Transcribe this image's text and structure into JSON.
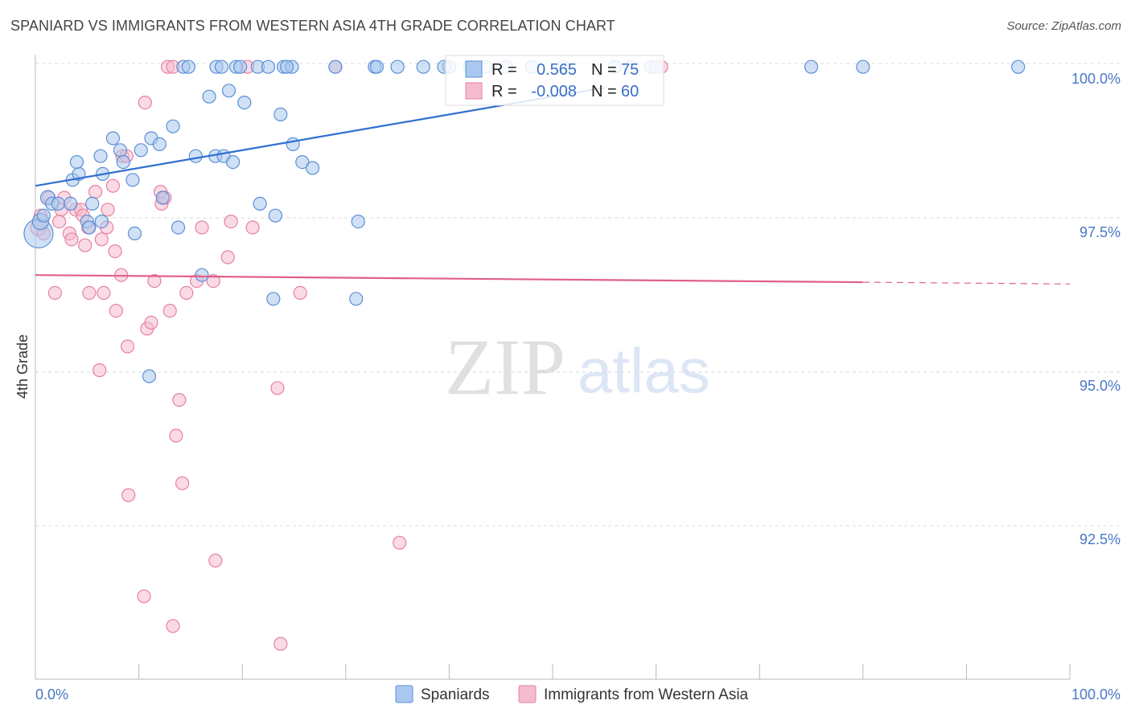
{
  "header": {
    "title": "SPANIARD VS IMMIGRANTS FROM WESTERN ASIA 4TH GRADE CORRELATION CHART",
    "source": "Source: ZipAtlas.com"
  },
  "watermark": {
    "zip": "ZIP",
    "atlas": "atlas"
  },
  "colors": {
    "blue_fill": "#aac8ef",
    "blue_stroke": "#5b8fd6",
    "blue_line": "#2f6fd0",
    "pink_fill": "#f5bccf",
    "pink_stroke": "#e7809f",
    "pink_line": "#e0608a",
    "axis_text": "#4a78c4",
    "grid": "#d8d8d8"
  },
  "legend": {
    "r_label": "R =",
    "n_label": "N =",
    "series": [
      {
        "r": "0.565",
        "n": "75"
      },
      {
        "r": "-0.008",
        "n": "60"
      }
    ]
  },
  "chart_data": {
    "type": "scatter",
    "title": "SPANIARD VS IMMIGRANTS FROM WESTERN ASIA 4TH GRADE CORRELATION CHART",
    "xlabel": "",
    "ylabel": "4th Grade",
    "xlim": [
      0,
      100
    ],
    "ylim": [
      90.2,
      100.4
    ],
    "x_tick_labels": [
      "0.0%",
      "100.0%"
    ],
    "y_ticks": [
      100.0,
      97.5,
      95.0,
      92.5
    ],
    "y_tick_labels": [
      "100.0%",
      "97.5%",
      "95.0%",
      "92.5%"
    ],
    "series": [
      {
        "name": "Spaniards",
        "color": "blue",
        "r": 0.565,
        "n": 75,
        "trend": {
          "x0": 0,
          "y0": 98.2,
          "x1": 55,
          "y1": 99.85,
          "solid_until": 55
        },
        "points": [
          [
            0.3,
            97.4,
            18
          ],
          [
            0.5,
            97.6,
            10
          ],
          [
            0.8,
            97.7,
            8
          ],
          [
            1.2,
            98.0,
            9
          ],
          [
            1.6,
            97.9,
            8
          ],
          [
            2.2,
            97.9,
            8
          ],
          [
            3.4,
            97.9,
            8
          ],
          [
            3.6,
            98.3,
            8
          ],
          [
            4.2,
            98.4,
            8
          ],
          [
            4.0,
            98.6,
            8
          ],
          [
            5.0,
            97.6,
            8
          ],
          [
            5.5,
            97.9,
            8
          ],
          [
            5.2,
            97.5,
            8
          ],
          [
            6.4,
            97.6,
            8
          ],
          [
            6.5,
            98.4,
            8
          ],
          [
            6.3,
            98.7,
            8
          ],
          [
            7.5,
            99.0,
            8
          ],
          [
            8.2,
            98.8,
            8
          ],
          [
            8.5,
            98.6,
            8
          ],
          [
            9.4,
            98.3,
            8
          ],
          [
            9.6,
            97.4,
            8
          ],
          [
            10.2,
            98.8,
            8
          ],
          [
            11.2,
            99.0,
            8
          ],
          [
            12.0,
            98.9,
            8
          ],
          [
            12.3,
            98.0,
            8
          ],
          [
            11.0,
            95.0,
            8
          ],
          [
            13.3,
            99.2,
            8
          ],
          [
            13.8,
            97.5,
            8
          ],
          [
            14.3,
            100.2,
            8
          ],
          [
            14.8,
            100.2,
            8
          ],
          [
            15.5,
            98.7,
            8
          ],
          [
            16.1,
            96.7,
            8
          ],
          [
            16.8,
            99.7,
            8
          ],
          [
            17.4,
            98.7,
            8
          ],
          [
            17.5,
            100.2,
            8
          ],
          [
            18.0,
            100.2,
            8
          ],
          [
            18.2,
            98.7,
            8
          ],
          [
            18.7,
            99.8,
            8
          ],
          [
            19.1,
            98.6,
            8
          ],
          [
            19.4,
            100.2,
            8
          ],
          [
            19.8,
            100.2,
            8
          ],
          [
            20.2,
            99.6,
            8
          ],
          [
            21.5,
            100.2,
            8
          ],
          [
            21.7,
            97.9,
            8
          ],
          [
            22.5,
            100.2,
            8
          ],
          [
            23.0,
            96.3,
            8
          ],
          [
            23.2,
            97.7,
            8
          ],
          [
            23.7,
            99.4,
            8
          ],
          [
            24.0,
            100.2,
            8
          ],
          [
            24.8,
            100.2,
            8
          ],
          [
            24.3,
            100.2,
            8
          ],
          [
            24.9,
            98.9,
            8
          ],
          [
            25.8,
            98.6,
            8
          ],
          [
            26.8,
            98.5,
            8
          ],
          [
            29.0,
            100.2,
            8
          ],
          [
            31.0,
            96.3,
            8
          ],
          [
            31.2,
            97.6,
            8
          ],
          [
            32.8,
            100.2,
            8
          ],
          [
            33.0,
            100.2,
            8
          ],
          [
            35.0,
            100.2,
            8
          ],
          [
            37.5,
            100.2,
            8
          ],
          [
            40.0,
            100.2,
            8
          ],
          [
            42.0,
            100.2,
            8
          ],
          [
            43.5,
            100.2,
            8
          ],
          [
            45.5,
            100.2,
            8
          ],
          [
            48.0,
            100.2,
            8
          ],
          [
            51.0,
            100.2,
            8
          ],
          [
            56.0,
            100.2,
            8
          ],
          [
            57.5,
            100.2,
            8
          ],
          [
            59.5,
            100.2,
            8
          ],
          [
            60.0,
            100.2,
            8
          ],
          [
            75.0,
            100.2,
            8
          ],
          [
            80.0,
            100.2,
            8
          ],
          [
            95.0,
            100.2,
            8
          ],
          [
            39.5,
            100.2,
            8
          ]
        ]
      },
      {
        "name": "Immigrants from Western Asia",
        "color": "pink",
        "r": -0.008,
        "n": 60,
        "trend": {
          "x0": 0,
          "y0": 96.7,
          "x1": 100,
          "y1": 96.55,
          "solid_until": 80
        },
        "points": [
          [
            0.3,
            97.5,
            10
          ],
          [
            0.5,
            97.7,
            8
          ],
          [
            0.8,
            97.4,
            8
          ],
          [
            1.3,
            98.0,
            8
          ],
          [
            1.9,
            96.4,
            8
          ],
          [
            2.3,
            97.6,
            8
          ],
          [
            2.5,
            97.8,
            8
          ],
          [
            2.8,
            98.0,
            8
          ],
          [
            3.3,
            97.4,
            8
          ],
          [
            3.5,
            97.3,
            8
          ],
          [
            3.9,
            97.8,
            8
          ],
          [
            4.4,
            97.8,
            8
          ],
          [
            4.6,
            97.7,
            8
          ],
          [
            4.8,
            97.2,
            8
          ],
          [
            5.1,
            97.5,
            8
          ],
          [
            5.2,
            96.4,
            8
          ],
          [
            5.8,
            98.1,
            8
          ],
          [
            6.2,
            95.1,
            8
          ],
          [
            6.4,
            97.3,
            8
          ],
          [
            6.6,
            96.4,
            8
          ],
          [
            6.9,
            97.5,
            8
          ],
          [
            7.0,
            97.8,
            8
          ],
          [
            7.5,
            98.2,
            8
          ],
          [
            7.7,
            97.1,
            8
          ],
          [
            7.8,
            96.1,
            8
          ],
          [
            8.3,
            96.7,
            8
          ],
          [
            8.4,
            98.7,
            8
          ],
          [
            8.8,
            98.7,
            8
          ],
          [
            8.9,
            95.5,
            8
          ],
          [
            9.0,
            93.0,
            8
          ],
          [
            10.5,
            91.3,
            8
          ],
          [
            10.6,
            99.6,
            8
          ],
          [
            10.8,
            95.8,
            8
          ],
          [
            11.2,
            95.9,
            8
          ],
          [
            11.5,
            96.6,
            8
          ],
          [
            12.1,
            98.1,
            8
          ],
          [
            12.2,
            97.9,
            8
          ],
          [
            12.5,
            98.0,
            8
          ],
          [
            12.8,
            100.2,
            8
          ],
          [
            13.0,
            96.1,
            8
          ],
          [
            13.3,
            100.2,
            8
          ],
          [
            13.3,
            90.8,
            8
          ],
          [
            13.6,
            94.0,
            8
          ],
          [
            13.9,
            94.6,
            8
          ],
          [
            14.2,
            93.2,
            8
          ],
          [
            14.6,
            96.4,
            8
          ],
          [
            15.6,
            96.6,
            8
          ],
          [
            16.1,
            97.5,
            8
          ],
          [
            17.2,
            96.6,
            8
          ],
          [
            17.4,
            91.9,
            8
          ],
          [
            18.6,
            97.0,
            8
          ],
          [
            18.9,
            97.6,
            8
          ],
          [
            20.5,
            100.2,
            8
          ],
          [
            21.0,
            97.5,
            8
          ],
          [
            23.4,
            94.8,
            8
          ],
          [
            23.7,
            90.5,
            8
          ],
          [
            25.6,
            96.4,
            8
          ],
          [
            29.0,
            100.2,
            8
          ],
          [
            35.2,
            92.2,
            8
          ],
          [
            60.5,
            100.2,
            8
          ]
        ]
      }
    ]
  },
  "bottom_legend": [
    "Spaniards",
    "Immigrants from Western Asia"
  ]
}
